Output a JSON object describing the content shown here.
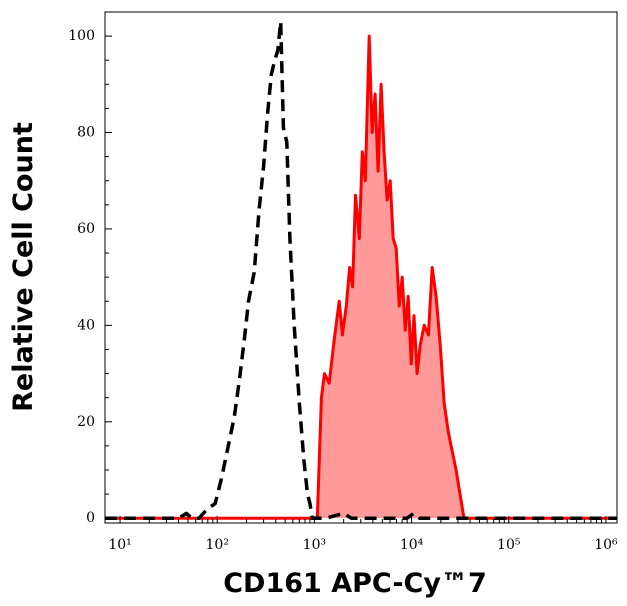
{
  "chart_data": {
    "type": "line",
    "x_label": "CD161 APC-Cy™7",
    "y_label": "Relative Cell Count",
    "xscale": "log",
    "xlim": [
      7,
      1300000
    ],
    "ylim": [
      -1,
      105
    ],
    "xticks": [
      {
        "value": 10,
        "label": "10¹"
      },
      {
        "value": 100,
        "label": "10²"
      },
      {
        "value": 1000,
        "label": "10³"
      },
      {
        "value": 10000,
        "label": "10⁴"
      },
      {
        "value": 100000,
        "label": "10⁵"
      },
      {
        "value": 1000000,
        "label": "10⁶"
      }
    ],
    "yticks": [
      0,
      20,
      40,
      60,
      80,
      100
    ],
    "series": [
      {
        "color": "#000000",
        "dash": true,
        "x": [
          7,
          40,
          48,
          55,
          65,
          80,
          95,
          110,
          130,
          150,
          170,
          190,
          210,
          240,
          270,
          300,
          330,
          360,
          390,
          420,
          450,
          480,
          520,
          560,
          620,
          700,
          780,
          850,
          900,
          950,
          1000,
          1300,
          2000,
          2400,
          9000,
          10500,
          12000,
          1300000
        ],
        "values": [
          0,
          0,
          1,
          0,
          0,
          2,
          3,
          8,
          15,
          21,
          29,
          37,
          45,
          51,
          64,
          73,
          84,
          92,
          95,
          97,
          103,
          81,
          78,
          58,
          40,
          24,
          12,
          5,
          3,
          0,
          0,
          0,
          1,
          0,
          0,
          1,
          0,
          0
        ]
      },
      {
        "color": "#ff0000",
        "fill": "#ff9a9a",
        "dash": false,
        "x": [
          7,
          1070,
          1180,
          1270,
          1420,
          1600,
          1800,
          1940,
          2130,
          2300,
          2470,
          2650,
          2900,
          3110,
          3340,
          3660,
          3920,
          4210,
          4520,
          4860,
          5220,
          5600,
          6020,
          6470,
          6940,
          7460,
          8000,
          8600,
          9230,
          9910,
          10600,
          11400,
          12300,
          13500,
          14900,
          16300,
          17900,
          19700,
          21600,
          23800,
          26100,
          28700,
          31500,
          34600,
          1300000
        ],
        "values": [
          0,
          0,
          25,
          30,
          28,
          37,
          45,
          38,
          44,
          52,
          48,
          67,
          58,
          76,
          70,
          100,
          80,
          88,
          72,
          90,
          76,
          66,
          70,
          58,
          56,
          44,
          50,
          39,
          46,
          32,
          42,
          30,
          36,
          40,
          38,
          52,
          46,
          36,
          24,
          18,
          14,
          10,
          5,
          0,
          0
        ]
      }
    ]
  }
}
